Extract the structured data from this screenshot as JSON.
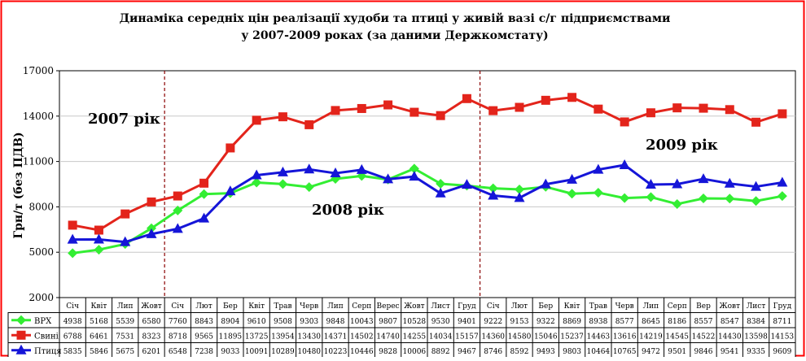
{
  "colors": {
    "frame_border": "#ff0000",
    "background": "#ffffff",
    "grid": "#c8c8c8",
    "divider": "#8b0000",
    "vrh": "#33ee33",
    "svyni": "#e3241b",
    "ptytsia": "#1515d8"
  },
  "icons": {
    "vrh": "diamond-marker",
    "svyni": "square-marker",
    "ptytsia": "triangle-marker"
  },
  "chart_data": {
    "type": "line",
    "title": "Динаміка середніх цін реалізації худоби та птиці у живій вазі с/г підприємствами",
    "subtitle": "у 2007-2009 роках (за даними Держкомстату)",
    "ylabel": "Грн/т (без ПДВ)",
    "xlabel": "",
    "ylim": [
      2000,
      17000
    ],
    "yticks": [
      2000,
      5000,
      8000,
      11000,
      14000,
      17000
    ],
    "ytick_labels": [
      "2000",
      "5000",
      "8000",
      "11000",
      "14000",
      "17000"
    ],
    "grid": true,
    "legend": "table-below",
    "categories": [
      "Січ",
      "Квіт",
      "Лип",
      "Жовт",
      "Січ",
      "Лют",
      "Бер",
      "Квіт",
      "Трав",
      "Черв",
      "Лип",
      "Серп",
      "Верес",
      "Жовт",
      "Лист",
      "Груд",
      "Січ",
      "Лют",
      "Бер",
      "Квіт",
      "Трав",
      "Черв",
      "Лип",
      "Серп",
      "Вер",
      "Жовт",
      "Лист",
      "Груд"
    ],
    "series": [
      {
        "name": "ВРХ",
        "values": [
          4938,
          5168,
          5539,
          6580,
          7760,
          8843,
          8904,
          9610,
          9508,
          9303,
          9848,
          10043,
          9807,
          10528,
          9530,
          9401,
          9222,
          9153,
          9322,
          8869,
          8938,
          8577,
          8645,
          8186,
          8557,
          8547,
          8384,
          8711
        ]
      },
      {
        "name": "Свині",
        "values": [
          6788,
          6461,
          7531,
          8323,
          8718,
          9565,
          11895,
          13725,
          13954,
          13430,
          14371,
          14502,
          14740,
          14255,
          14034,
          15157,
          14360,
          14580,
          15046,
          15237,
          14463,
          13616,
          14219,
          14545,
          14522,
          14430,
          13598,
          14153
        ]
      },
      {
        "name": "Птиця",
        "values": [
          5835,
          5846,
          5675,
          6201,
          6548,
          7238,
          9033,
          10091,
          10289,
          10480,
          10223,
          10446,
          9828,
          10006,
          8892,
          9467,
          8746,
          8592,
          9493,
          9803,
          10464,
          10765,
          9472,
          9501,
          9846,
          9541,
          9335,
          9609
        ]
      }
    ],
    "annotations": [
      {
        "text": "2007 рік"
      },
      {
        "text": "2008 рік"
      },
      {
        "text": "2009 рік"
      }
    ]
  }
}
